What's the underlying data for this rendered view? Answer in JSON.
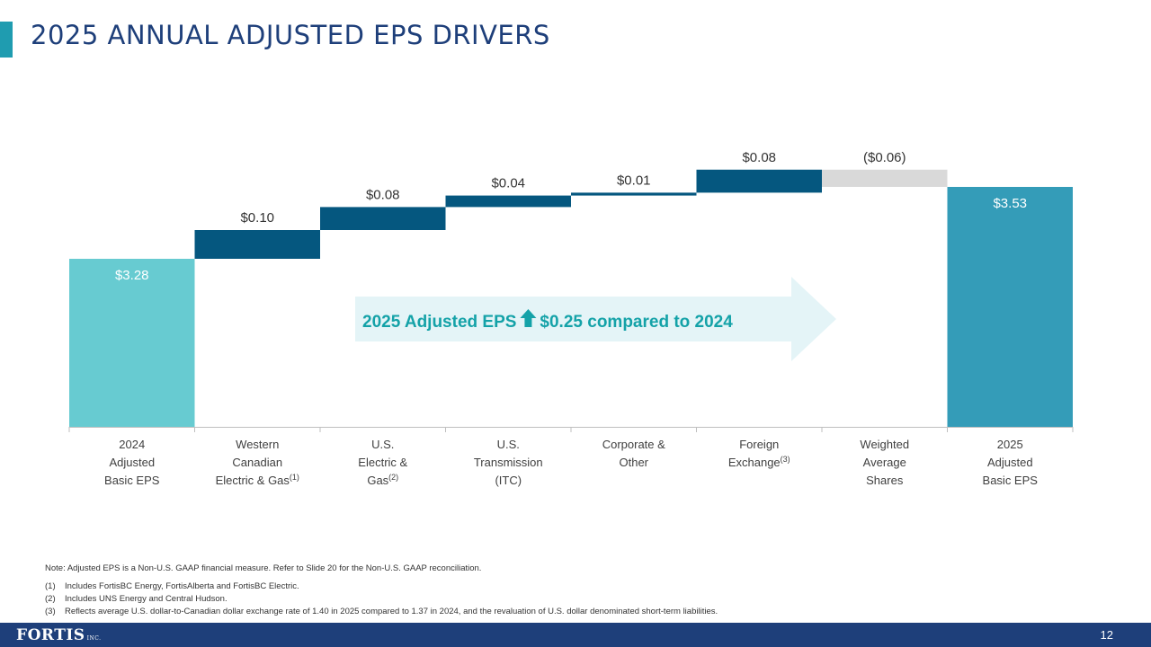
{
  "slide": {
    "title": "2025 ANNUAL ADJUSTED EPS DRIVERS",
    "page_number": "12",
    "logo_text": "FORTIS",
    "logo_suffix": "INC."
  },
  "callout": {
    "prefix": "2025 Adjusted EPS",
    "arrow_icon": "up-arrow-icon",
    "suffix": "$0.25 compared to 2024"
  },
  "chart_data": {
    "type": "waterfall",
    "title": "2025 ANNUAL ADJUSTED EPS DRIVERS",
    "unit": "$",
    "categories": [
      {
        "lines": [
          "2024",
          "Adjusted",
          "Basic EPS"
        ],
        "sup": "",
        "sup_line": 2
      },
      {
        "lines": [
          "Western",
          "Canadian",
          "Electric & Gas"
        ],
        "sup": "(1)",
        "sup_line": 2
      },
      {
        "lines": [
          "U.S.",
          "Electric &",
          "Gas"
        ],
        "sup": "(2)",
        "sup_line": 2
      },
      {
        "lines": [
          "U.S.",
          "Transmission",
          "(ITC)"
        ],
        "sup": "",
        "sup_line": 2
      },
      {
        "lines": [
          "Corporate &",
          "Other"
        ],
        "sup": "",
        "sup_line": 1
      },
      {
        "lines": [
          "Foreign",
          "Exchange"
        ],
        "sup": "(3)",
        "sup_line": 1
      },
      {
        "lines": [
          "Weighted",
          "Average",
          "Shares"
        ],
        "sup": "",
        "sup_line": 2
      },
      {
        "lines": [
          "2025",
          "Adjusted",
          "Basic EPS"
        ],
        "sup": "",
        "sup_line": 2
      }
    ],
    "bars": [
      {
        "kind": "total",
        "value": 3.28,
        "label": "$3.28"
      },
      {
        "kind": "increase",
        "value": 0.1,
        "label": "$0.10"
      },
      {
        "kind": "increase",
        "value": 0.08,
        "label": "$0.08"
      },
      {
        "kind": "increase",
        "value": 0.04,
        "label": "$0.04"
      },
      {
        "kind": "increase",
        "value": 0.01,
        "label": "$0.01"
      },
      {
        "kind": "increase",
        "value": 0.08,
        "label": "$0.08"
      },
      {
        "kind": "decrease",
        "value": -0.06,
        "label": "($0.06)"
      },
      {
        "kind": "total",
        "value": 3.53,
        "label": "$3.53"
      }
    ],
    "y_baseline": 0,
    "y_max": 3.6,
    "colors": {
      "start_total": "#67cbd1",
      "end_total": "#349cb8",
      "increase": "#05577f",
      "decrease": "#d9d9d9",
      "callout_bg": "#e4f4f7",
      "callout_text": "#14a2a8"
    },
    "grid": false
  },
  "notes": {
    "main": "Note: Adjusted EPS is a Non-U.S. GAAP financial measure. Refer to Slide 20 for the Non-U.S. GAAP reconciliation.",
    "footnotes": [
      {
        "num": "(1)",
        "text": "Includes FortisBC Energy, FortisAlberta and FortisBC Electric."
      },
      {
        "num": "(2)",
        "text": "Includes UNS Energy and Central Hudson."
      },
      {
        "num": "(3)",
        "text": "Reflects average U.S. dollar-to-Canadian dollar exchange rate of 1.40 in 2025 compared to 1.37 in 2024, and the revaluation of U.S. dollar denominated short-term liabilities."
      }
    ]
  }
}
